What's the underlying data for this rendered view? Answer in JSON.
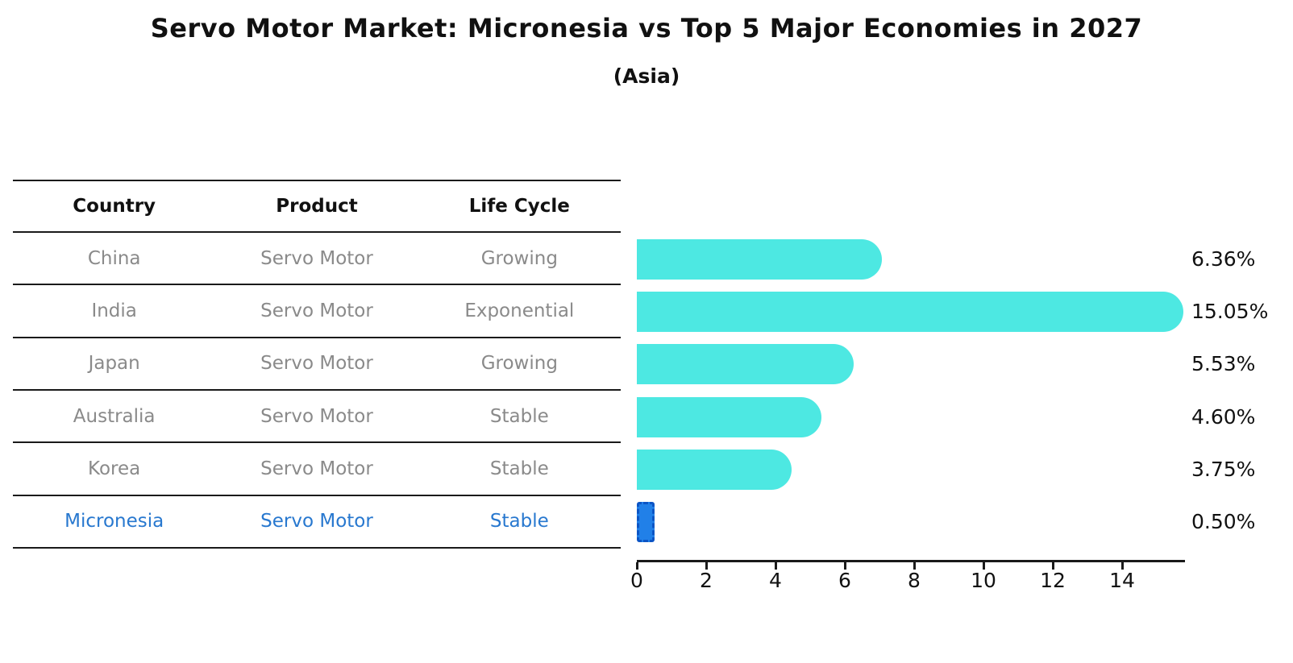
{
  "title": "Servo Motor Market: Micronesia vs Top 5 Major Economies in 2027",
  "subtitle": "(Asia)",
  "table": {
    "headers": [
      "Country",
      "Product",
      "Life Cycle"
    ],
    "rows": [
      {
        "country": "China",
        "product": "Servo Motor",
        "life_cycle": "Growing",
        "highlight": false
      },
      {
        "country": "India",
        "product": "Servo Motor",
        "life_cycle": "Exponential",
        "highlight": false
      },
      {
        "country": "Japan",
        "product": "Servo Motor",
        "life_cycle": "Growing",
        "highlight": false
      },
      {
        "country": "Australia",
        "product": "Servo Motor",
        "life_cycle": "Stable",
        "highlight": false
      },
      {
        "country": "Korea",
        "product": "Servo Motor",
        "life_cycle": "Stable",
        "highlight": false
      },
      {
        "country": "Micronesia",
        "product": "Servo Motor",
        "life_cycle": "Stable",
        "highlight": true
      }
    ]
  },
  "chart_data": {
    "type": "bar",
    "orientation": "horizontal",
    "title": "Servo Motor Market: Micronesia vs Top 5 Major Economies in 2027",
    "subtitle": "(Asia)",
    "categories": [
      "China",
      "India",
      "Japan",
      "Australia",
      "Korea",
      "Micronesia"
    ],
    "values": [
      6.36,
      15.05,
      5.53,
      4.6,
      3.75,
      0.5
    ],
    "labels": [
      "6.36%",
      "15.05%",
      "5.53%",
      "4.60%",
      "3.75%",
      "0.50%"
    ],
    "xlabel": "",
    "ylabel": "",
    "xticks": [
      0,
      2,
      4,
      6,
      8,
      10,
      12,
      14
    ],
    "xlim": [
      0,
      15.8
    ],
    "grid": false,
    "legend": false,
    "bar_color": "#4de8e2",
    "highlight_index": 5,
    "highlight_fill": "#2180e8",
    "highlight_border": "#0c55c5",
    "text_color": "#111111",
    "muted_text_color": "#8a8a8a",
    "highlight_text_color": "#2878cf"
  }
}
